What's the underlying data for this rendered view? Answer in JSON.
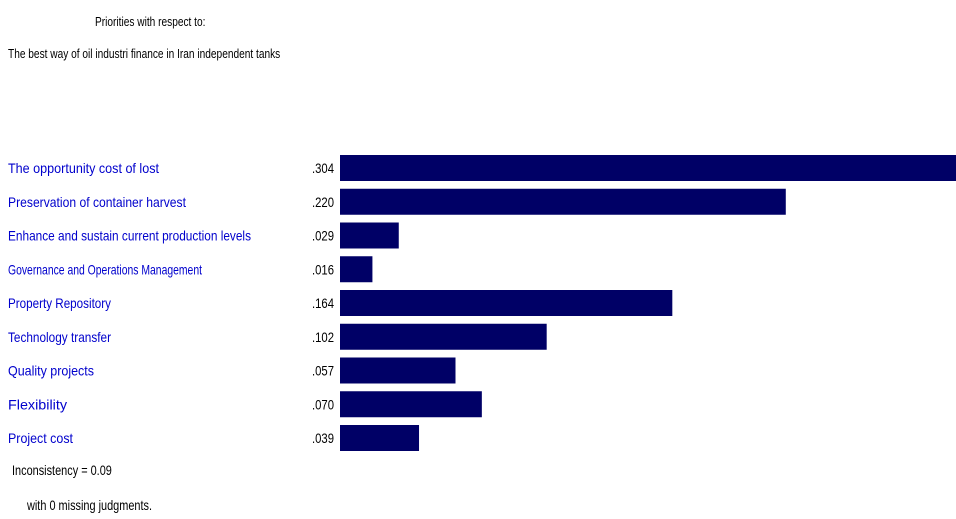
{
  "header": {
    "line1": "Priorities with respect to:",
    "line2": "The best way of oil industri finance in Iran independent tanks"
  },
  "chart_data": {
    "type": "bar",
    "orientation": "horizontal",
    "categories": [
      "The opportunity cost of lost",
      "Preservation of container harvest",
      "Enhance and sustain current production levels",
      "Governance and Operations Management",
      "Property Repository",
      "Technology transfer",
      "Quality projects",
      "Flexibility",
      "Project cost"
    ],
    "value_labels": [
      ".304",
      ".220",
      ".029",
      ".016",
      ".164",
      ".102",
      ".057",
      ".070",
      ".039"
    ],
    "values": [
      0.304,
      0.22,
      0.029,
      0.016,
      0.164,
      0.102,
      0.057,
      0.07,
      0.039
    ],
    "bar_color": "#000066",
    "label_color": "#0000cc",
    "xlim": [
      0,
      0.304
    ]
  },
  "footer": {
    "inconsistency": "Inconsistency = 0.09",
    "missing": "with 0  missing judgments."
  }
}
